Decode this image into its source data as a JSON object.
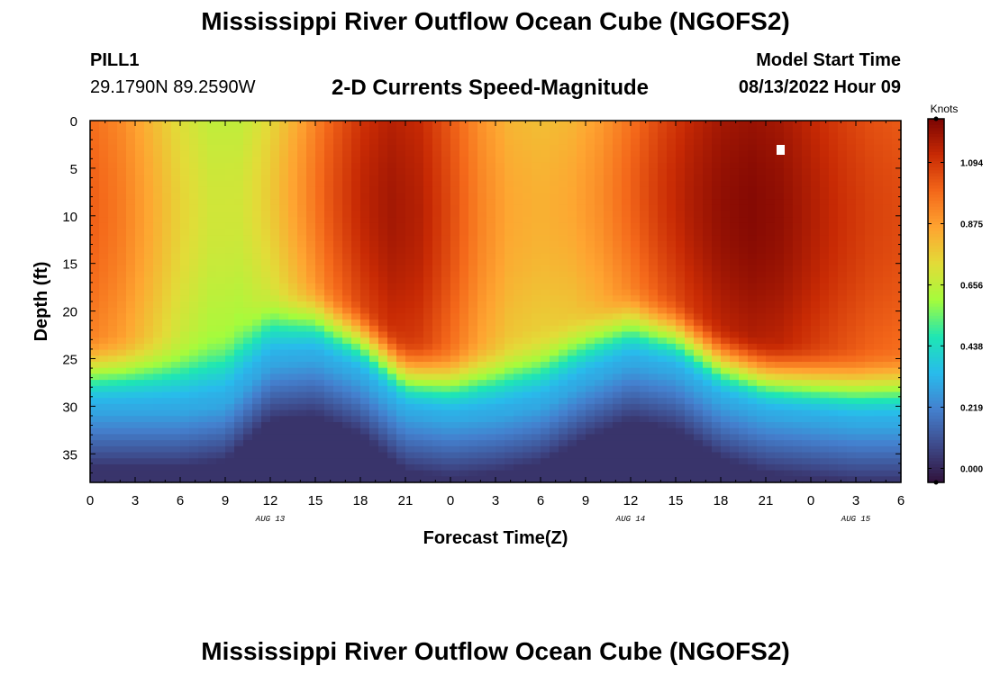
{
  "header": {
    "title": "Mississippi River Outflow Ocean Cube (NGOFS2)",
    "station_id": "PILL1",
    "station_coords": "29.1790N  89.2590W",
    "subtitle": "2-D Currents Speed-Magnitude",
    "model_start_label": "Model Start Time",
    "model_start_value": "08/13/2022 Hour 09"
  },
  "footer": {
    "repeat_title": "Mississippi River Outflow Ocean Cube (NGOFS2)"
  },
  "chart_data": {
    "type": "heatmap",
    "xlabel": "Forecast Time(Z)",
    "ylabel": "Depth (ft)",
    "x_range_hours": [
      0,
      54
    ],
    "y_range": [
      0,
      38
    ],
    "y_inverted": true,
    "x_tick_labels": [
      "0",
      "3",
      "6",
      "9",
      "12",
      "15",
      "18",
      "21",
      "0",
      "3",
      "6",
      "9",
      "12",
      "15",
      "18",
      "21",
      "0",
      "3",
      "6"
    ],
    "y_tick_labels": [
      "0",
      "5",
      "10",
      "15",
      "20",
      "25",
      "30",
      "35"
    ],
    "y_tick_values": [
      0,
      5,
      10,
      15,
      20,
      25,
      30,
      35
    ],
    "date_labels": [
      {
        "text": "AUG 13",
        "hour": 12
      },
      {
        "text": "AUG 14",
        "hour": 36
      },
      {
        "text": "AUG 15",
        "hour": 51
      }
    ],
    "colorbar": {
      "unit": "Knots",
      "tick_labels": [
        "1.094",
        "0.875",
        "0.656",
        "0.438",
        "0.219",
        "0.000"
      ],
      "tick_values": [
        1.094,
        0.875,
        0.656,
        0.438,
        0.219,
        0.0
      ],
      "range": [
        -0.05,
        1.25
      ],
      "colormap": "turbo"
    },
    "surface_speed_knots": [
      {
        "hour": 0,
        "value": 0.98
      },
      {
        "hour": 2,
        "value": 0.92
      },
      {
        "hour": 4,
        "value": 0.82
      },
      {
        "hour": 6,
        "value": 0.72
      },
      {
        "hour": 8,
        "value": 0.66
      },
      {
        "hour": 10,
        "value": 0.66
      },
      {
        "hour": 12,
        "value": 0.74
      },
      {
        "hour": 14,
        "value": 0.86
      },
      {
        "hour": 16,
        "value": 1.0
      },
      {
        "hour": 18,
        "value": 1.1
      },
      {
        "hour": 20,
        "value": 1.15
      },
      {
        "hour": 22,
        "value": 1.12
      },
      {
        "hour": 24,
        "value": 1.02
      },
      {
        "hour": 26,
        "value": 0.9
      },
      {
        "hour": 28,
        "value": 0.82
      },
      {
        "hour": 30,
        "value": 0.8
      },
      {
        "hour": 32,
        "value": 0.82
      },
      {
        "hour": 34,
        "value": 0.88
      },
      {
        "hour": 36,
        "value": 0.97
      },
      {
        "hour": 38,
        "value": 1.06
      },
      {
        "hour": 40,
        "value": 1.13
      },
      {
        "hour": 42,
        "value": 1.18
      },
      {
        "hour": 44,
        "value": 1.2
      },
      {
        "hour": 46,
        "value": 1.18
      },
      {
        "hour": 48,
        "value": 1.13
      },
      {
        "hour": 50,
        "value": 1.08
      },
      {
        "hour": 52,
        "value": 1.04
      },
      {
        "hour": 54,
        "value": 1.02
      }
    ],
    "shear_depth_ft": [
      {
        "hour": 0,
        "value": 27.5
      },
      {
        "hour": 6,
        "value": 27.5
      },
      {
        "hour": 9,
        "value": 26.8
      },
      {
        "hour": 12,
        "value": 22.5
      },
      {
        "hour": 15,
        "value": 22.0
      },
      {
        "hour": 18,
        "value": 24.0
      },
      {
        "hour": 21,
        "value": 27.8
      },
      {
        "hour": 24,
        "value": 28.5
      },
      {
        "hour": 27,
        "value": 28.0
      },
      {
        "hour": 30,
        "value": 27.0
      },
      {
        "hour": 33,
        "value": 24.5
      },
      {
        "hour": 36,
        "value": 22.5
      },
      {
        "hour": 39,
        "value": 23.5
      },
      {
        "hour": 42,
        "value": 26.5
      },
      {
        "hour": 45,
        "value": 28.0
      },
      {
        "hour": 48,
        "value": 28.5
      },
      {
        "hour": 51,
        "value": 29.0
      },
      {
        "hour": 54,
        "value": 29.0
      }
    ]
  }
}
